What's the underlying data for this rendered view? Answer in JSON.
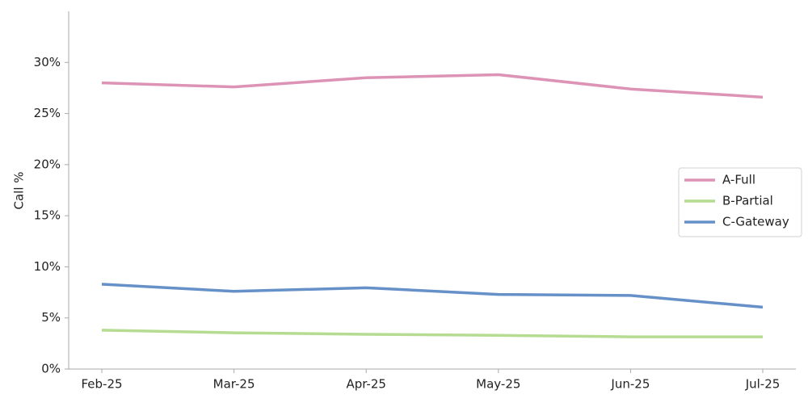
{
  "chart_data": {
    "type": "line",
    "y_label": "Call %",
    "categories": [
      "Feb-25",
      "Mar-25",
      "Apr-25",
      "May-25",
      "Jun-25",
      "Jul-25"
    ],
    "series": [
      {
        "name": "A-Full",
        "color": "#dc93b6",
        "values": [
          28.0,
          27.6,
          28.5,
          28.8,
          27.4,
          26.6
        ]
      },
      {
        "name": "B-Partial",
        "color": "#b6dc92",
        "values": [
          3.8,
          3.55,
          3.4,
          3.3,
          3.15,
          3.15
        ]
      },
      {
        "name": "C-Gateway",
        "color": "#6590c8",
        "values": [
          8.3,
          7.6,
          7.95,
          7.3,
          7.2,
          6.05
        ]
      }
    ],
    "ylim": [
      0,
      35
    ],
    "yticks": [
      {
        "value": 0,
        "label": "0%"
      },
      {
        "value": 5,
        "label": "5%"
      },
      {
        "value": 10,
        "label": "10%"
      },
      {
        "value": 15,
        "label": "15%"
      },
      {
        "value": 20,
        "label": "20%"
      },
      {
        "value": 25,
        "label": "25%"
      },
      {
        "value": 30,
        "label": "30%"
      }
    ],
    "legend": "right"
  }
}
